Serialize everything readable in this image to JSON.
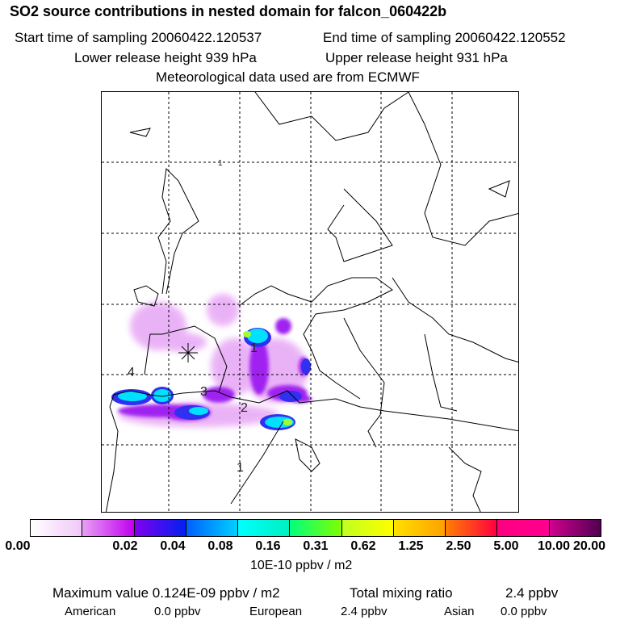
{
  "header": {
    "title": "SO2 source contributions in nested domain for falcon_060422b",
    "start_label": "Start time of sampling 20060422.120537",
    "end_label": "End time of sampling 20060422.120552",
    "lower_label": "Lower release height  939 hPa",
    "upper_label": "Upper release height  931 hPa",
    "met_label": "Meteorological data used are from ECMWF"
  },
  "map": {
    "labels": [
      "1",
      "4",
      "3",
      "2",
      "1",
      "1"
    ],
    "release_marker": "asterisk-icon"
  },
  "colorbar": {
    "ticks": [
      "0.00",
      "0.02",
      "0.04",
      "0.08",
      "0.16",
      "0.31",
      "0.62",
      "1.25",
      "2.50",
      "5.00",
      "10.00",
      "20.00"
    ],
    "unit": "10E-10 ppbv / m2",
    "colors": [
      [
        "#ffffff",
        "#f0c8f8"
      ],
      [
        "#e8a0f4",
        "#c000f0"
      ],
      [
        "#8000f0",
        "#0020f0"
      ],
      [
        "#0060ff",
        "#00d0ff"
      ],
      [
        "#00ffff",
        "#00f0c0"
      ],
      [
        "#00ff80",
        "#80ff00"
      ],
      [
        "#c0ff20",
        "#ffff00"
      ],
      [
        "#ffe000",
        "#ffa000"
      ],
      [
        "#ff8000",
        "#ff0040"
      ],
      [
        "#ff0080",
        "#ff0090"
      ],
      [
        "#d00090",
        "#500050"
      ]
    ]
  },
  "footer": {
    "max_label": "Maximum value  0.124E-09 ppbv / m2",
    "total_label": "Total mixing ratio",
    "total_value": "2.4 ppbv",
    "american_label": "American",
    "american_value": "0.0 ppbv",
    "european_label": "European",
    "european_value": "2.4 ppbv",
    "asian_label": "Asian",
    "asian_value": "0.0 ppbv"
  }
}
